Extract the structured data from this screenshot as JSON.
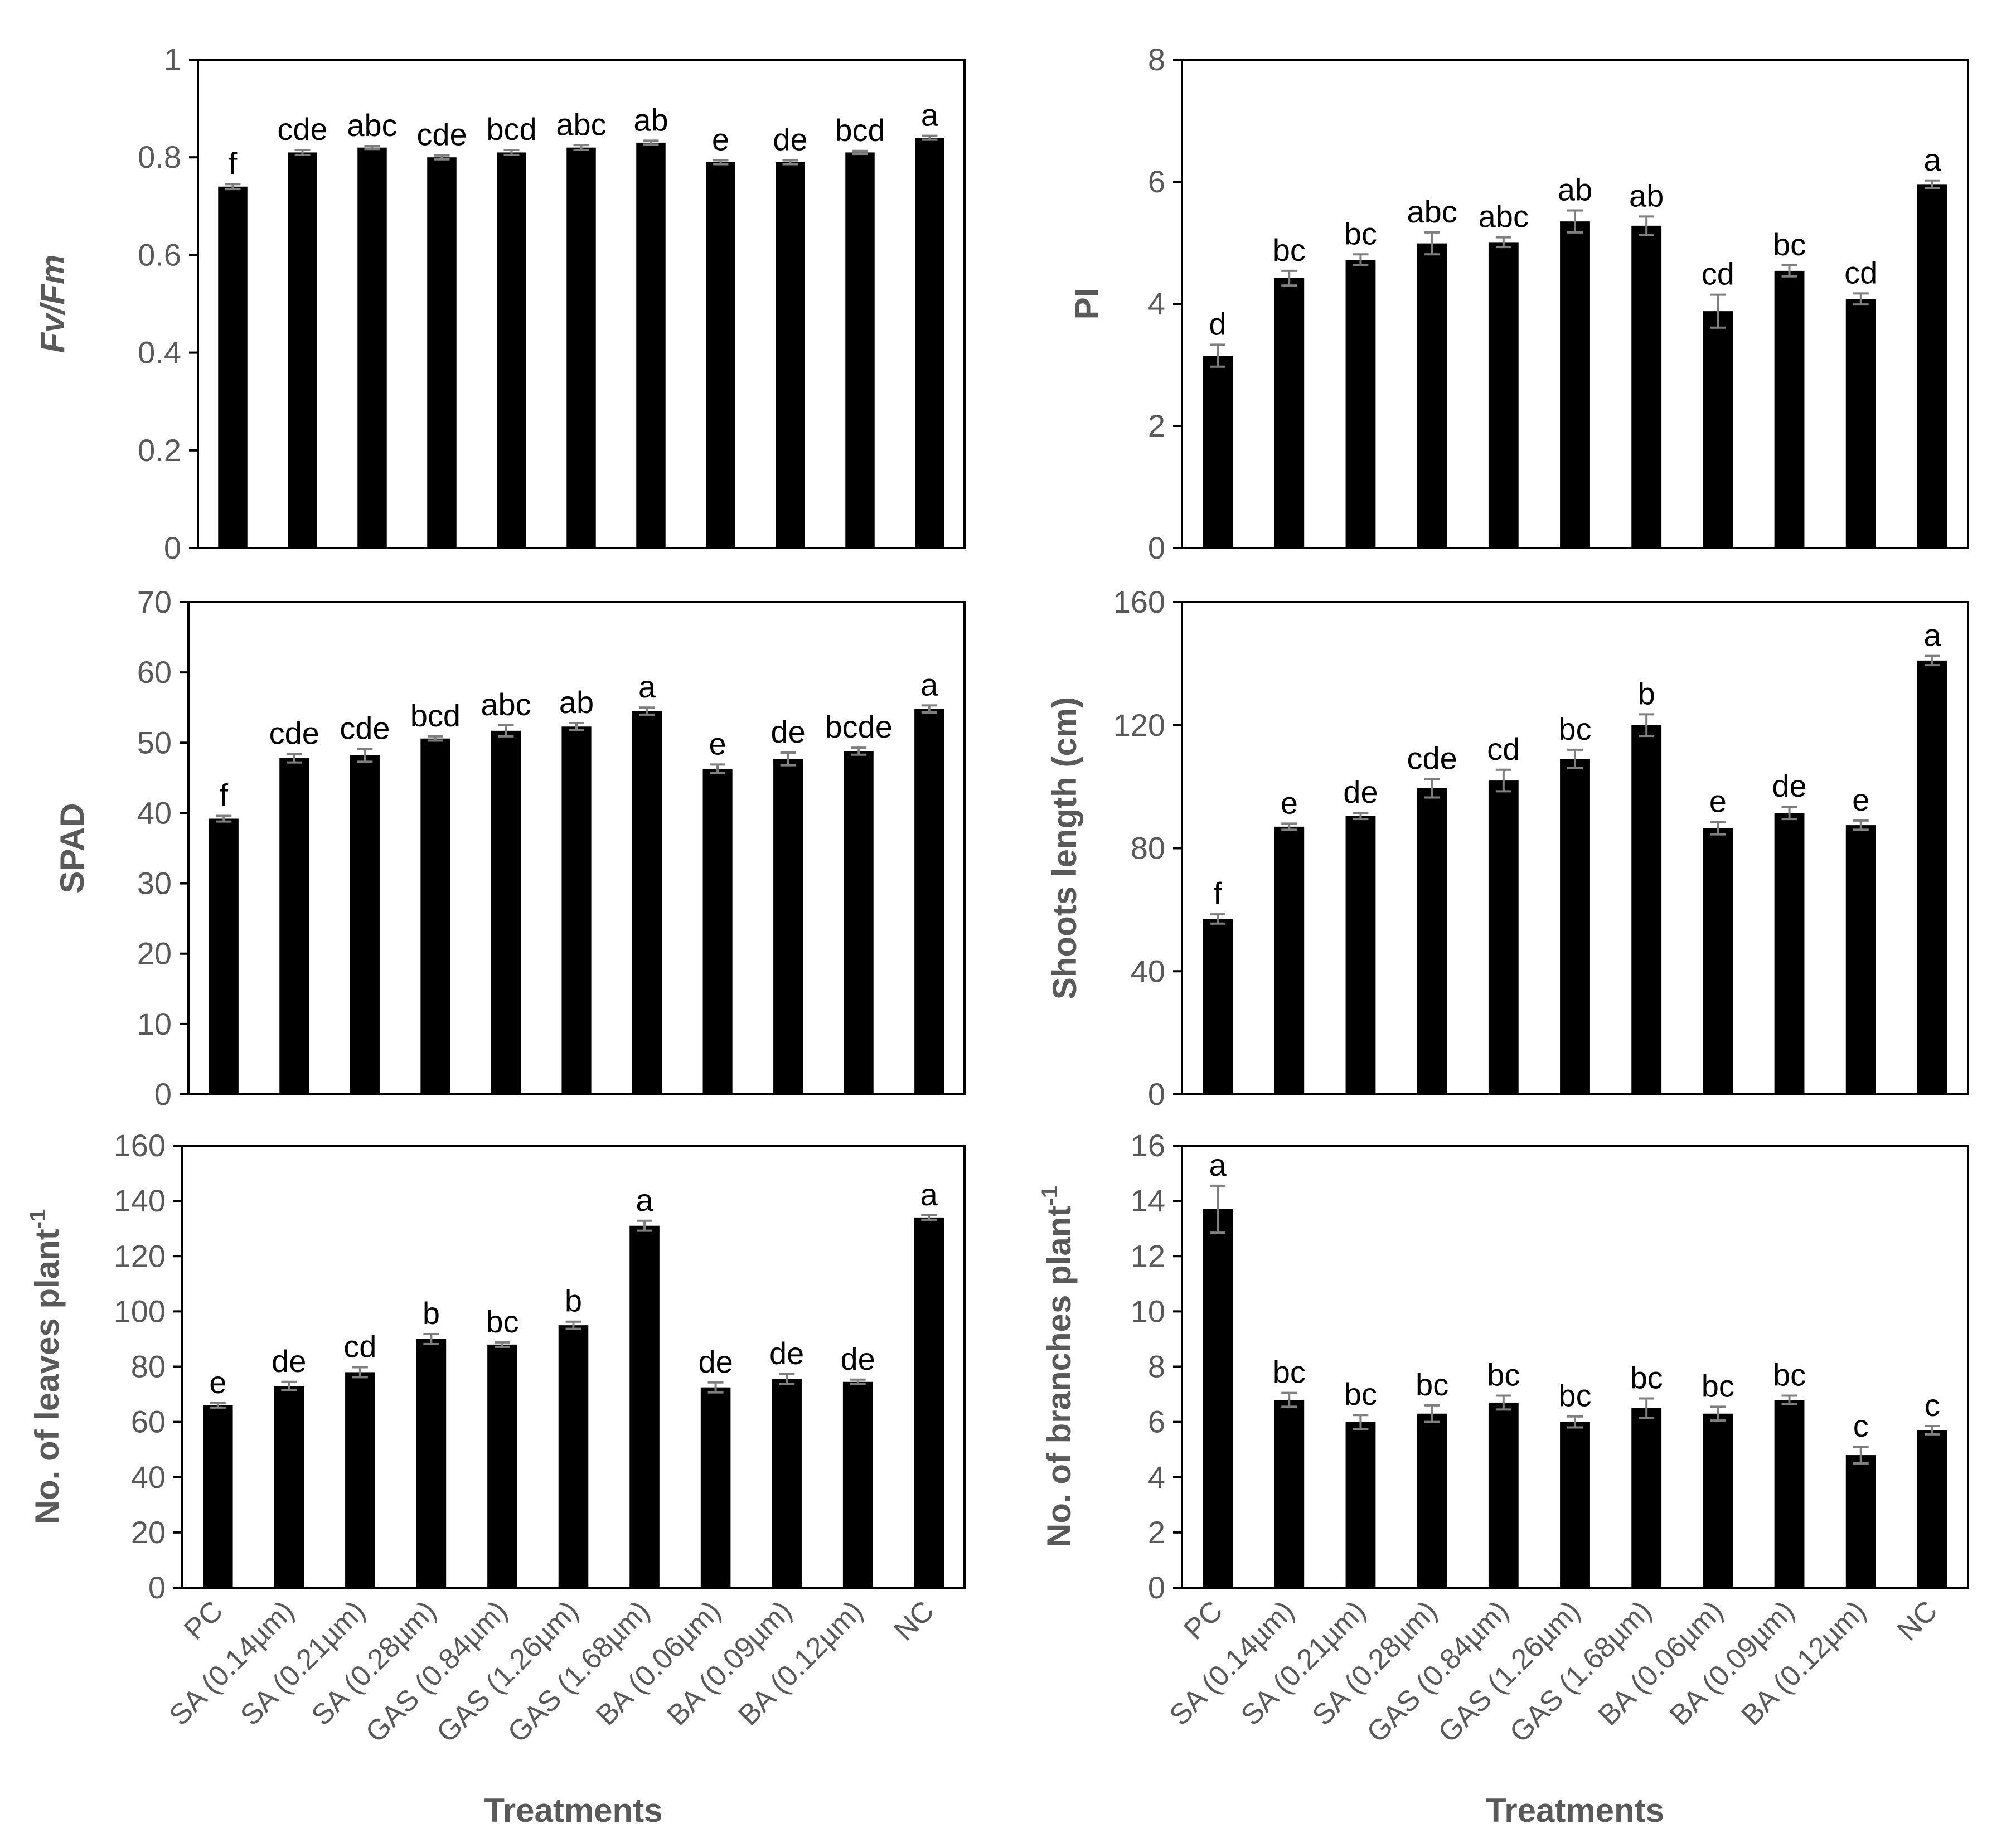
{
  "categories": [
    "PC",
    "SA (0.14µm)",
    "SA (0.21µm)",
    "SA (0.28µm)",
    "GAS (0.84µm)",
    "GAS (1.26µm)",
    "GAS (1.68µm)",
    "BA (0.06µm)",
    "BA (0.09µm)",
    "BA (0.12µm)",
    "NC"
  ],
  "colors": {
    "bar": "#000000",
    "error": "#7f7f7f",
    "axis": "#000000",
    "text": "#595959"
  },
  "chart_data": [
    {
      "id": "fvfm",
      "type": "bar",
      "ylabel": "Fv/Fm",
      "ylabel_italic": true,
      "ylabel_sup": "",
      "xlabel": "",
      "categories": [
        "PC",
        "SA (0.14µm)",
        "SA (0.21µm)",
        "SA (0.28µm)",
        "GAS (0.84µm)",
        "GAS (1.26µm)",
        "GAS (1.68µm)",
        "BA (0.06µm)",
        "BA (0.09µm)",
        "BA (0.12µm)",
        "NC"
      ],
      "values": [
        0.74,
        0.81,
        0.82,
        0.8,
        0.81,
        0.82,
        0.83,
        0.79,
        0.79,
        0.81,
        0.84
      ],
      "errors": [
        0.005,
        0.005,
        0.003,
        0.004,
        0.005,
        0.005,
        0.004,
        0.004,
        0.004,
        0.003,
        0.004
      ],
      "letters": [
        "f",
        "cde",
        "abc",
        "cde",
        "bcd",
        "abc",
        "ab",
        "e",
        "de",
        "bcd",
        "a"
      ],
      "ylim": [
        0,
        1
      ],
      "ticks": [
        0,
        0.2,
        0.4,
        0.6,
        0.8,
        1
      ],
      "tick_labels": [
        "0",
        "0.2",
        "0.4",
        "0.6",
        "0.8",
        "1"
      ]
    },
    {
      "id": "pi",
      "type": "bar",
      "ylabel": "PI",
      "ylabel_italic": false,
      "ylabel_sup": "",
      "xlabel": "",
      "categories": [
        "PC",
        "SA (0.14µm)",
        "SA (0.21µm)",
        "SA (0.28µm)",
        "GAS (0.84µm)",
        "GAS (1.26µm)",
        "GAS (1.68µm)",
        "BA (0.06µm)",
        "BA (0.09µm)",
        "BA (0.12µm)",
        "NC"
      ],
      "values": [
        3.15,
        4.42,
        4.72,
        4.99,
        5.01,
        5.35,
        5.28,
        3.88,
        4.54,
        4.08,
        5.96
      ],
      "errors": [
        0.18,
        0.12,
        0.09,
        0.18,
        0.08,
        0.18,
        0.15,
        0.27,
        0.09,
        0.09,
        0.06
      ],
      "letters": [
        "d",
        "bc",
        "bc",
        "abc",
        "abc",
        "ab",
        "ab",
        "cd",
        "bc",
        "cd",
        "a"
      ],
      "ylim": [
        0,
        8
      ],
      "ticks": [
        0,
        2,
        4,
        6,
        8
      ],
      "tick_labels": [
        "0",
        "2",
        "4",
        "6",
        "8"
      ]
    },
    {
      "id": "spad",
      "type": "bar",
      "ylabel": "SPAD",
      "ylabel_italic": false,
      "ylabel_sup": "",
      "xlabel": "",
      "categories": [
        "PC",
        "SA (0.14µm)",
        "SA (0.21µm)",
        "SA (0.28µm)",
        "GAS (0.84µm)",
        "GAS (1.26µm)",
        "GAS (1.68µm)",
        "BA (0.06µm)",
        "BA (0.09µm)",
        "BA (0.12µm)",
        "NC"
      ],
      "values": [
        39.2,
        47.8,
        48.2,
        50.6,
        51.7,
        52.3,
        54.5,
        46.3,
        47.7,
        48.8,
        54.8
      ],
      "errors": [
        0.4,
        0.6,
        0.9,
        0.3,
        0.8,
        0.5,
        0.5,
        0.6,
        0.9,
        0.5,
        0.5
      ],
      "letters": [
        "f",
        "cde",
        "cde",
        "bcd",
        "abc",
        "ab",
        "a",
        "e",
        "de",
        "bcde",
        "a"
      ],
      "ylim": [
        0,
        70
      ],
      "ticks": [
        0,
        10,
        20,
        30,
        40,
        50,
        60,
        70
      ],
      "tick_labels": [
        "0",
        "10",
        "20",
        "30",
        "40",
        "50",
        "60",
        "70"
      ]
    },
    {
      "id": "shoots",
      "type": "bar",
      "ylabel": "Shoots length (cm)",
      "ylabel_italic": false,
      "ylabel_sup": "",
      "xlabel": "",
      "categories": [
        "PC",
        "SA (0.14µm)",
        "SA (0.21µm)",
        "SA (0.28µm)",
        "GAS (0.84µm)",
        "GAS (1.26µm)",
        "GAS (1.68µm)",
        "BA (0.06µm)",
        "BA (0.09µm)",
        "BA (0.12µm)",
        "NC"
      ],
      "values": [
        57,
        87,
        90.5,
        99.5,
        102,
        109,
        120,
        86.5,
        91.5,
        87.5,
        141
      ],
      "errors": [
        1.5,
        1,
        1,
        3,
        3.5,
        3,
        3.5,
        2,
        2,
        1.5,
        1.5
      ],
      "letters": [
        "f",
        "e",
        "de",
        "cde",
        "cd",
        "bc",
        "b",
        "e",
        "de",
        "e",
        "a"
      ],
      "ylim": [
        0,
        160
      ],
      "ticks": [
        0,
        40,
        80,
        120,
        160
      ],
      "tick_labels": [
        "0",
        "40",
        "80",
        "120",
        "160"
      ]
    },
    {
      "id": "leaves",
      "type": "bar",
      "ylabel": "No. of leaves plant",
      "ylabel_italic": false,
      "ylabel_sup": "-1",
      "xlabel": "Treatments",
      "categories": [
        "PC",
        "SA (0.14µm)",
        "SA (0.21µm)",
        "SA (0.28µm)",
        "GAS (0.84µm)",
        "GAS (1.26µm)",
        "GAS (1.68µm)",
        "BA (0.06µm)",
        "BA (0.09µm)",
        "BA (0.12µm)",
        "NC"
      ],
      "values": [
        66,
        73,
        78,
        90,
        88,
        95,
        131,
        72.5,
        75.5,
        74.5,
        134
      ],
      "errors": [
        0.8,
        1.5,
        1.8,
        1.8,
        0.8,
        1.3,
        1.8,
        1.8,
        1.8,
        0.8,
        0.8
      ],
      "letters": [
        "e",
        "de",
        "cd",
        "b",
        "bc",
        "b",
        "a",
        "de",
        "de",
        "de",
        "a"
      ],
      "ylim": [
        0,
        160
      ],
      "ticks": [
        0,
        20,
        40,
        60,
        80,
        100,
        120,
        140,
        160
      ],
      "tick_labels": [
        "0",
        "20",
        "40",
        "60",
        "80",
        "100",
        "120",
        "140",
        "160"
      ]
    },
    {
      "id": "branches",
      "type": "bar",
      "ylabel": "No. of branches plant",
      "ylabel_italic": false,
      "ylabel_sup": "-1",
      "xlabel": "Treatments",
      "categories": [
        "PC",
        "SA (0.14µm)",
        "SA (0.21µm)",
        "SA (0.28µm)",
        "GAS (0.84µm)",
        "GAS (1.26µm)",
        "GAS (1.68µm)",
        "BA (0.06µm)",
        "BA (0.09µm)",
        "BA (0.12µm)",
        "NC"
      ],
      "values": [
        13.7,
        6.8,
        6.0,
        6.3,
        6.7,
        6.0,
        6.5,
        6.3,
        6.8,
        4.8,
        5.7
      ],
      "errors": [
        0.85,
        0.25,
        0.25,
        0.3,
        0.25,
        0.2,
        0.35,
        0.25,
        0.15,
        0.3,
        0.15
      ],
      "letters": [
        "a",
        "bc",
        "bc",
        "bc",
        "bc",
        "bc",
        "bc",
        "bc",
        "bc",
        "c",
        "c"
      ],
      "ylim": [
        0,
        16
      ],
      "ticks": [
        0,
        2,
        4,
        6,
        8,
        10,
        12,
        14,
        16
      ],
      "tick_labels": [
        "0",
        "2",
        "4",
        "6",
        "8",
        "10",
        "12",
        "14",
        "16"
      ]
    }
  ]
}
